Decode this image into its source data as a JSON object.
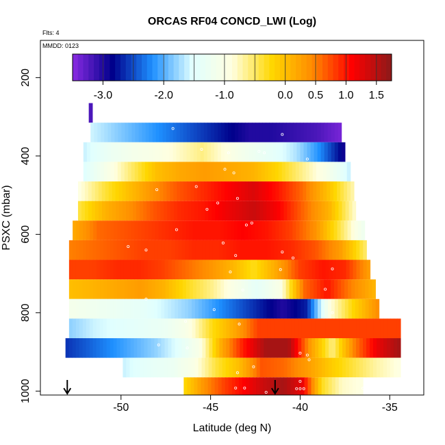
{
  "chart_data": {
    "type": "heatmap",
    "title": "ORCAS RF04 CONCD_LWI (Log)",
    "flights_label": "Flts: 4",
    "mmdd_label": "MMDD: 0123",
    "xlabel": "Latitude (deg N)",
    "ylabel": "PSXC (mbar)",
    "xlim": [
      -54.5,
      -33.1
    ],
    "ylim": [
      1010,
      105
    ],
    "y_reversed": true,
    "xticks": [
      -50,
      -45,
      -40,
      -35
    ],
    "xtick_labels": [
      "-50",
      "-45",
      "-40",
      "-35"
    ],
    "yticks": [
      200,
      400,
      600,
      800,
      1000
    ],
    "ytick_labels": [
      "200",
      "400",
      "600",
      "800",
      "1000"
    ],
    "colorbar": {
      "range": [
        -3.5,
        1.75
      ],
      "ticks": [
        -3.0,
        -2.0,
        -1.0,
        0.0,
        0.5,
        1.0,
        1.5
      ],
      "tick_labels": [
        "-3.0",
        "-2.0",
        "-1.0",
        "0.0",
        "0.5",
        "1.0",
        "1.5"
      ],
      "colors": [
        "#8a2be2",
        "#00008b",
        "#1e90ff",
        "#e0ffff",
        "#ffffe0",
        "#ffd700",
        "#ff8c00",
        "#ff0000",
        "#8b1a1a"
      ]
    },
    "bands": [
      {
        "p0": 265,
        "p1": 315,
        "lat_start": -51.8,
        "lat_end": -51.6,
        "values": [
          -3.2
        ]
      },
      {
        "p0": 315,
        "p1": 365,
        "lat_start": -51.7,
        "lat_end": -37.7,
        "values": [
          -1.6,
          -1.8,
          -2.0,
          -2.2,
          -2.4,
          -2.6,
          -2.8,
          -3.0,
          -3.0,
          -3.1,
          -3.2,
          -3.4
        ]
      },
      {
        "p0": 365,
        "p1": 415,
        "lat_start": -52.1,
        "lat_end": -37.5,
        "values": [
          -1.6,
          -1.3,
          -1.1,
          -1.0,
          -0.8,
          -0.6,
          -0.9,
          -1.2,
          -1.4,
          -1.7,
          -2.2,
          -2.9
        ]
      },
      {
        "p0": 415,
        "p1": 465,
        "lat_start": -52.1,
        "lat_end": -37.2,
        "values": [
          -1.5,
          -1.0,
          -0.5,
          0.0,
          0.2,
          0.3,
          0.2,
          0.1,
          -0.2,
          -0.6,
          -1.0,
          -1.6
        ]
      },
      {
        "p0": 465,
        "p1": 515,
        "lat_start": -52.4,
        "lat_end": -37.0,
        "values": [
          -0.9,
          -0.4,
          0.0,
          0.4,
          0.7,
          0.9,
          1.1,
          1.3,
          1.0,
          0.6,
          0.0,
          -0.7
        ]
      },
      {
        "p0": 515,
        "p1": 565,
        "lat_start": -52.4,
        "lat_end": -36.9,
        "values": [
          -0.4,
          0.1,
          0.4,
          0.7,
          0.9,
          1.0,
          1.2,
          1.4,
          1.1,
          0.6,
          0.1,
          -0.8
        ]
      },
      {
        "p0": 565,
        "p1": 615,
        "lat_start": -52.7,
        "lat_end": -36.4,
        "values": [
          0.2,
          0.6,
          0.7,
          0.8,
          0.9,
          1.0,
          1.0,
          1.1,
          1.0,
          0.8,
          0.4,
          -0.4,
          -1.2
        ]
      },
      {
        "p0": 615,
        "p1": 665,
        "lat_start": -52.9,
        "lat_end": -36.3,
        "values": [
          0.5,
          0.6,
          0.7,
          0.8,
          0.8,
          0.9,
          0.9,
          1.0,
          1.0,
          0.9,
          0.7,
          0.3,
          -0.5
        ]
      },
      {
        "p0": 665,
        "p1": 715,
        "lat_start": -52.9,
        "lat_end": -36.1,
        "values": [
          0.8,
          0.8,
          0.9,
          0.9,
          0.8,
          0.6,
          0.4,
          0.1,
          -0.3,
          0.2,
          0.8,
          1.0,
          0.9,
          0.3
        ]
      },
      {
        "p0": 715,
        "p1": 765,
        "lat_start": -52.9,
        "lat_end": -35.8,
        "values": [
          0.0,
          0.1,
          0.2,
          0.3,
          0.1,
          -0.3,
          -0.6,
          -1.0,
          -1.4,
          -1.0,
          0.6,
          1.0,
          0.5,
          0.1
        ]
      },
      {
        "p0": 765,
        "p1": 815,
        "lat_start": -52.9,
        "lat_end": -35.6,
        "values": [
          -1.1,
          -1.2,
          -1.3,
          -1.4,
          -1.6,
          -1.8,
          -2.1,
          -2.4,
          -2.7,
          -3.0,
          -2.7,
          -0.9,
          -0.2,
          0.4
        ]
      },
      {
        "p0": 815,
        "p1": 865,
        "lat_start": -52.9,
        "lat_end": -34.4,
        "values": [
          -1.8,
          -1.6,
          -1.5,
          -1.4,
          -1.3,
          -1.0,
          -0.3,
          0.2,
          0.8,
          0.8,
          0.8,
          0.8,
          0.8,
          0.8,
          0.8
        ]
      },
      {
        "p0": 865,
        "p1": 915,
        "lat_start": -53.1,
        "lat_end": -34.4,
        "values": [
          -2.6,
          -2.4,
          -2.2,
          -2.0,
          -1.8,
          -1.5,
          -1.0,
          0.2,
          1.0,
          1.6,
          1.6,
          0.3,
          -0.6,
          0.5,
          1.2,
          1.6
        ]
      },
      {
        "p0": 915,
        "p1": 965,
        "lat_start": -49.9,
        "lat_end": -34.4,
        "values": [
          -1.6,
          -1.4,
          -1.3,
          -1.0,
          -0.4,
          0.0,
          0.7,
          0.6,
          0.3,
          -0.1,
          -0.4,
          -0.7,
          -0.9
        ]
      },
      {
        "p0": 965,
        "p1": 1010,
        "lat_start": -46.5,
        "lat_end": -36.5,
        "values": [
          -0.2,
          0.4,
          0.8,
          1.1,
          1.4,
          1.6,
          1.2,
          -0.3,
          -0.8,
          -0.9
        ]
      }
    ],
    "points": [
      {
        "lat": -51.8,
        "p": 340
      },
      {
        "lat": -47.1,
        "p": 330
      },
      {
        "lat": -41.0,
        "p": 345
      },
      {
        "lat": -45.5,
        "p": 383
      },
      {
        "lat": -44.0,
        "p": 392
      },
      {
        "lat": -42.3,
        "p": 388
      },
      {
        "lat": -42.0,
        "p": 392
      },
      {
        "lat": -39.6,
        "p": 408
      },
      {
        "lat": -44.2,
        "p": 434
      },
      {
        "lat": -43.7,
        "p": 443
      },
      {
        "lat": -48.0,
        "p": 486
      },
      {
        "lat": -45.8,
        "p": 478
      },
      {
        "lat": -43.5,
        "p": 508
      },
      {
        "lat": -44.6,
        "p": 520
      },
      {
        "lat": -45.2,
        "p": 536
      },
      {
        "lat": -43.0,
        "p": 576
      },
      {
        "lat": -42.7,
        "p": 571
      },
      {
        "lat": -46.9,
        "p": 588
      },
      {
        "lat": -44.3,
        "p": 622
      },
      {
        "lat": -49.6,
        "p": 631
      },
      {
        "lat": -48.6,
        "p": 640
      },
      {
        "lat": -43.6,
        "p": 654
      },
      {
        "lat": -41.0,
        "p": 645
      },
      {
        "lat": -40.4,
        "p": 660
      },
      {
        "lat": -43.9,
        "p": 696
      },
      {
        "lat": -41.1,
        "p": 690
      },
      {
        "lat": -38.2,
        "p": 688
      },
      {
        "lat": -43.2,
        "p": 742
      },
      {
        "lat": -38.6,
        "p": 740
      },
      {
        "lat": -48.6,
        "p": 765
      },
      {
        "lat": -44.8,
        "p": 792
      },
      {
        "lat": -38.2,
        "p": 800
      },
      {
        "lat": -46.4,
        "p": 822
      },
      {
        "lat": -43.4,
        "p": 829
      },
      {
        "lat": -47.9,
        "p": 882
      },
      {
        "lat": -46.3,
        "p": 890
      },
      {
        "lat": -40.0,
        "p": 903
      },
      {
        "lat": -39.6,
        "p": 908
      },
      {
        "lat": -39.5,
        "p": 920
      },
      {
        "lat": -42.6,
        "p": 938
      },
      {
        "lat": -43.5,
        "p": 953
      },
      {
        "lat": -40.0,
        "p": 975
      },
      {
        "lat": -43.6,
        "p": 992
      },
      {
        "lat": -43.1,
        "p": 992
      },
      {
        "lat": -40.2,
        "p": 994
      },
      {
        "lat": -40.0,
        "p": 994
      },
      {
        "lat": -39.8,
        "p": 994
      },
      {
        "lat": -41.9,
        "p": 1003
      },
      {
        "lat": -36.5,
        "p": 993
      }
    ],
    "arrows": [
      {
        "lat": -53.0
      },
      {
        "lat": -41.4
      }
    ]
  }
}
